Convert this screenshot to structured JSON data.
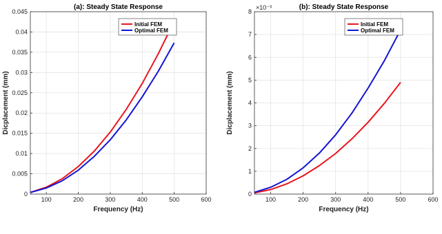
{
  "chart_data": [
    {
      "type": "line",
      "title": "(a): Steady State Response",
      "xlabel": "Frequency (Hz)",
      "ylabel": "Dicplacement (mm)",
      "xlim": [
        50,
        600
      ],
      "ylim": [
        0,
        0.045
      ],
      "x_ticks": [
        100,
        200,
        300,
        400,
        500,
        600
      ],
      "y_ticks": [
        0,
        0.005,
        0.01,
        0.015,
        0.02,
        0.025,
        0.03,
        0.035,
        0.04,
        0.045
      ],
      "y_tick_labels": [
        "0",
        "0.005",
        "0.01",
        "0.015",
        "0.02",
        "0.025",
        "0.03",
        "0.035",
        "0.04",
        "0.045"
      ],
      "y_exponent_label": "",
      "grid": true,
      "legend_position": "top-right",
      "x": [
        50,
        100,
        150,
        200,
        250,
        300,
        350,
        400,
        450,
        500
      ],
      "series": [
        {
          "name": "Initial FEM",
          "color": "#e8141b",
          "values": [
            0.0004,
            0.0017,
            0.0038,
            0.0068,
            0.0106,
            0.0153,
            0.0209,
            0.0273,
            0.0346,
            0.0426
          ]
        },
        {
          "name": "Optimal FEM",
          "color": "#1313d6",
          "values": [
            0.0004,
            0.0015,
            0.0033,
            0.0059,
            0.0093,
            0.0134,
            0.0183,
            0.024,
            0.0303,
            0.0373
          ]
        }
      ]
    },
    {
      "type": "line",
      "title": "(b): Steady State Response",
      "xlabel": "Frequency (Hz)",
      "ylabel": "Dicplacement (mm)",
      "xlim": [
        50,
        600
      ],
      "ylim": [
        0,
        8
      ],
      "x_ticks": [
        100,
        200,
        300,
        400,
        500,
        600
      ],
      "y_ticks": [
        0,
        1,
        2,
        3,
        4,
        5,
        6,
        7,
        8
      ],
      "y_tick_labels": [
        "0",
        "1",
        "2",
        "3",
        "4",
        "5",
        "6",
        "7",
        "8"
      ],
      "y_exponent_label": "×10⁻³",
      "grid": true,
      "legend_position": "top-left",
      "x": [
        50,
        100,
        150,
        200,
        250,
        300,
        350,
        400,
        450,
        500
      ],
      "series": [
        {
          "name": "Initial FEM",
          "color": "#e8141b",
          "values": [
            0.05,
            0.2,
            0.45,
            0.8,
            1.25,
            1.78,
            2.42,
            3.15,
            3.98,
            4.9
          ]
        },
        {
          "name": "Optimal FEM",
          "color": "#1313d6",
          "values": [
            0.08,
            0.3,
            0.65,
            1.15,
            1.8,
            2.6,
            3.55,
            4.65,
            5.85,
            7.2
          ]
        }
      ]
    }
  ]
}
